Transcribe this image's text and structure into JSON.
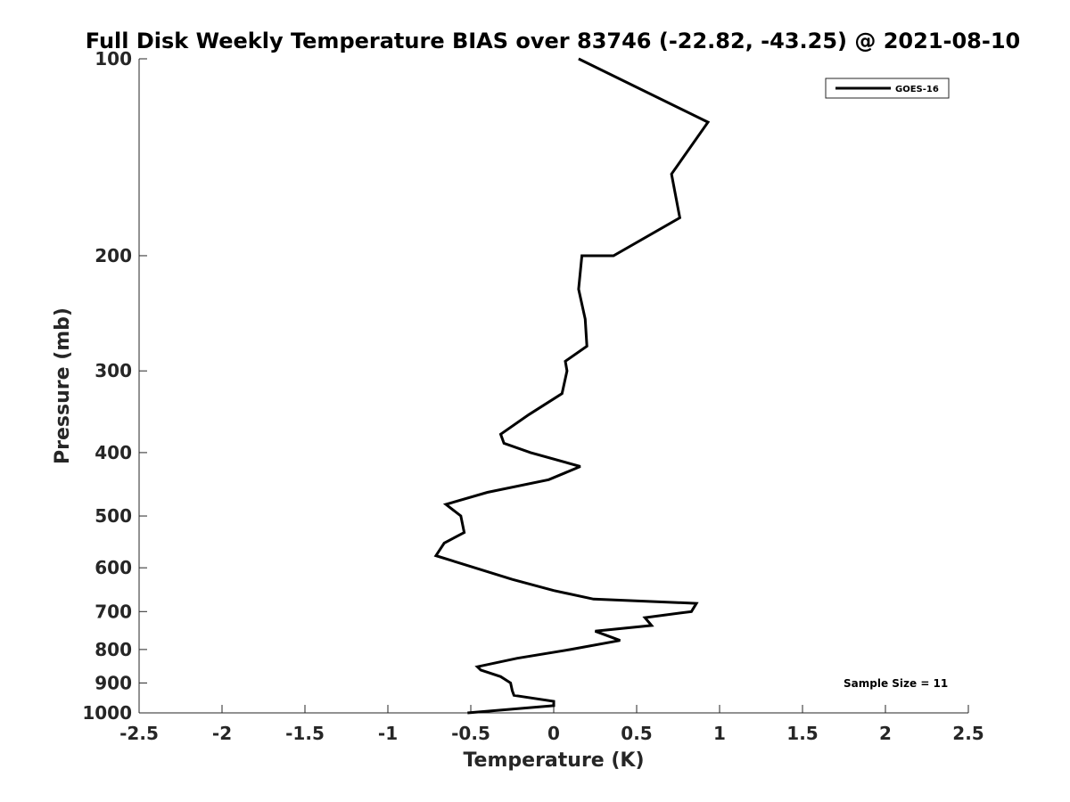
{
  "chart_data": {
    "type": "line",
    "title": "Full Disk Weekly Temperature BIAS over 83746 (-22.82, -43.25) @ 2021-08-10",
    "xlabel": "Temperature (K)",
    "ylabel": "Pressure (mb)",
    "xlim": [
      -2.5,
      2.5
    ],
    "ylim": [
      1000,
      100
    ],
    "yscale": "log",
    "xticks": [
      -2.5,
      -2,
      -1.5,
      -1,
      -0.5,
      0,
      0.5,
      1,
      1.5,
      2,
      2.5
    ],
    "xtick_labels": [
      "-2.5",
      "-2",
      "-1.5",
      "-1",
      "-0.5",
      "0",
      "0.5",
      "1",
      "1.5",
      "2",
      "2.5"
    ],
    "yticks": [
      100,
      200,
      300,
      400,
      500,
      600,
      700,
      800,
      900,
      1000
    ],
    "ytick_labels": [
      "100",
      "200",
      "300",
      "400",
      "500",
      "600",
      "700",
      "800",
      "900",
      "1000"
    ],
    "grid": false,
    "legend_position": "top-right",
    "annotation": "Sample Size = 11",
    "series": [
      {
        "name": "GOES-16",
        "color": "#000000",
        "points": [
          {
            "x": 0.15,
            "y": 100
          },
          {
            "x": 0.93,
            "y": 125
          },
          {
            "x": 0.71,
            "y": 150
          },
          {
            "x": 0.76,
            "y": 175
          },
          {
            "x": 0.36,
            "y": 200
          },
          {
            "x": 0.17,
            "y": 200
          },
          {
            "x": 0.15,
            "y": 225
          },
          {
            "x": 0.19,
            "y": 250
          },
          {
            "x": 0.2,
            "y": 275
          },
          {
            "x": 0.07,
            "y": 290
          },
          {
            "x": 0.08,
            "y": 300
          },
          {
            "x": 0.05,
            "y": 325
          },
          {
            "x": -0.15,
            "y": 350
          },
          {
            "x": -0.32,
            "y": 375
          },
          {
            "x": -0.3,
            "y": 387
          },
          {
            "x": -0.14,
            "y": 400
          },
          {
            "x": 0.16,
            "y": 420
          },
          {
            "x": -0.03,
            "y": 440
          },
          {
            "x": -0.4,
            "y": 460
          },
          {
            "x": -0.65,
            "y": 480
          },
          {
            "x": -0.56,
            "y": 500
          },
          {
            "x": -0.54,
            "y": 530
          },
          {
            "x": -0.66,
            "y": 550
          },
          {
            "x": -0.71,
            "y": 575
          },
          {
            "x": -0.25,
            "y": 625
          },
          {
            "x": 0.0,
            "y": 650
          },
          {
            "x": 0.24,
            "y": 670
          },
          {
            "x": 0.86,
            "y": 680
          },
          {
            "x": 0.83,
            "y": 700
          },
          {
            "x": 0.55,
            "y": 715
          },
          {
            "x": 0.59,
            "y": 735
          },
          {
            "x": 0.25,
            "y": 750
          },
          {
            "x": 0.4,
            "y": 775
          },
          {
            "x": 0.1,
            "y": 800
          },
          {
            "x": -0.22,
            "y": 825
          },
          {
            "x": -0.46,
            "y": 850
          },
          {
            "x": -0.44,
            "y": 860
          },
          {
            "x": -0.32,
            "y": 880
          },
          {
            "x": -0.26,
            "y": 900
          },
          {
            "x": -0.25,
            "y": 925
          },
          {
            "x": -0.24,
            "y": 940
          },
          {
            "x": 0.0,
            "y": 960
          },
          {
            "x": 0.0,
            "y": 975
          },
          {
            "x": -0.52,
            "y": 1000
          }
        ]
      }
    ]
  }
}
